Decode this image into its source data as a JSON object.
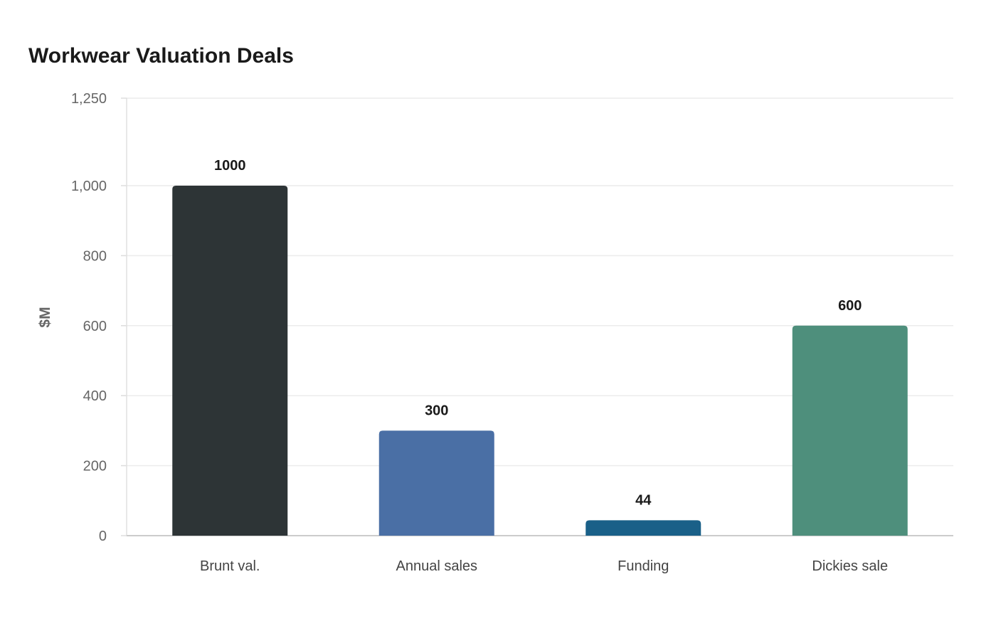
{
  "chart_data": {
    "type": "bar",
    "title": "Workwear Valuation Deals",
    "xlabel": "",
    "ylabel": "$M",
    "ylim": [
      0,
      1250
    ],
    "yticks": [
      0,
      200,
      400,
      600,
      800,
      1000,
      1250
    ],
    "ytick_labels": [
      "0",
      "200",
      "400",
      "600",
      "800",
      "1,000",
      "1,250"
    ],
    "grid": true,
    "legend": "none",
    "categories": [
      "Brunt val.",
      "Annual sales",
      "Funding",
      "Dickies sale"
    ],
    "values": [
      1000,
      300,
      44,
      600
    ],
    "value_labels": [
      "1000",
      "300",
      "44",
      "600"
    ],
    "colors": [
      "#2d3436",
      "#4a6fa5",
      "#1a6088",
      "#4e8f7c"
    ]
  }
}
